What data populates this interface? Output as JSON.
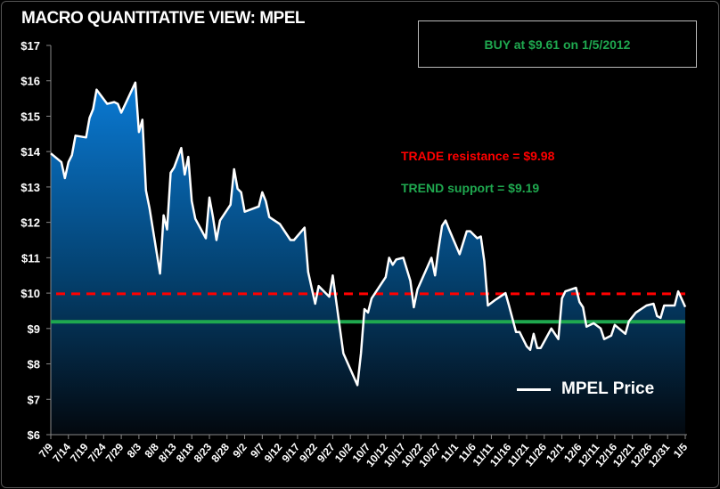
{
  "chart_data": {
    "type": "area",
    "title": "MACRO QUANTITATIVE VIEW: MPEL",
    "xlabel": "",
    "ylabel": "",
    "ylim": [
      6,
      17
    ],
    "y_ticks": [
      "$6",
      "$7",
      "$8",
      "$9",
      "$10",
      "$11",
      "$12",
      "$13",
      "$14",
      "$15",
      "$16",
      "$17"
    ],
    "x_ticks": [
      "7/9",
      "7/14",
      "7/19",
      "7/24",
      "7/29",
      "8/3",
      "8/8",
      "8/13",
      "8/18",
      "8/23",
      "8/28",
      "9/2",
      "9/7",
      "9/12",
      "9/17",
      "9/22",
      "9/27",
      "10/2",
      "10/7",
      "10/12",
      "10/17",
      "10/22",
      "10/27",
      "11/1",
      "11/6",
      "11/11",
      "11/16",
      "11/21",
      "11/26",
      "12/1",
      "12/6",
      "12/11",
      "12/16",
      "12/21",
      "12/26",
      "12/31",
      "1/5"
    ],
    "grid": false,
    "legend_placement": "bottom-right",
    "series": [
      {
        "name": "MPEL Price",
        "color": "#ffffff",
        "fill_top": "#0a7bd6",
        "fill_bottom": "#03080e",
        "x": [
          "2011-07-09",
          "2011-07-12",
          "2011-07-13",
          "2011-07-14",
          "2011-07-15",
          "2011-07-16",
          "2011-07-19",
          "2011-07-20",
          "2011-07-21",
          "2011-07-22",
          "2011-07-25",
          "2011-07-27",
          "2011-07-28",
          "2011-07-29",
          "2011-08-02",
          "2011-08-03",
          "2011-08-04",
          "2011-08-05",
          "2011-08-06",
          "2011-08-09",
          "2011-08-10",
          "2011-08-11",
          "2011-08-12",
          "2011-08-13",
          "2011-08-15",
          "2011-08-16",
          "2011-08-17",
          "2011-08-18",
          "2011-08-19",
          "2011-08-22",
          "2011-08-23",
          "2011-08-24",
          "2011-08-25",
          "2011-08-26",
          "2011-08-29",
          "2011-08-30",
          "2011-08-31",
          "2011-09-01",
          "2011-09-02",
          "2011-09-06",
          "2011-09-07",
          "2011-09-08",
          "2011-09-09",
          "2011-09-12",
          "2011-09-15",
          "2011-09-16",
          "2011-09-19",
          "2011-09-20",
          "2011-09-22",
          "2011-09-23",
          "2011-09-26",
          "2011-09-27",
          "2011-09-28",
          "2011-09-30",
          "2011-10-04",
          "2011-10-05",
          "2011-10-06",
          "2011-10-07",
          "2011-10-08",
          "2011-10-11",
          "2011-10-12",
          "2011-10-13",
          "2011-10-14",
          "2011-10-15",
          "2011-10-17",
          "2011-10-19",
          "2011-10-20",
          "2011-10-21",
          "2011-10-25",
          "2011-10-26",
          "2011-10-27",
          "2011-10-28",
          "2011-10-29",
          "2011-10-30",
          "2011-11-02",
          "2011-11-04",
          "2011-11-05",
          "2011-11-07",
          "2011-11-08",
          "2011-11-09",
          "2011-11-10",
          "2011-11-12",
          "2011-11-15",
          "2011-11-16",
          "2011-11-18",
          "2011-11-19",
          "2011-11-21",
          "2011-11-22",
          "2011-11-23",
          "2011-11-24",
          "2011-11-25",
          "2011-11-28",
          "2011-11-30",
          "2011-12-01",
          "2011-12-02",
          "2011-12-05",
          "2011-12-06",
          "2011-12-07",
          "2011-12-08",
          "2011-12-10",
          "2011-12-12",
          "2011-12-13",
          "2011-12-15",
          "2011-12-16",
          "2011-12-19",
          "2011-12-20",
          "2011-12-22",
          "2011-12-25",
          "2011-12-27",
          "2011-12-28",
          "2011-12-29",
          "2011-12-30",
          "2012-01-02",
          "2012-01-03",
          "2012-01-05"
        ],
        "values": [
          13.95,
          13.7,
          13.25,
          13.7,
          13.9,
          14.45,
          14.4,
          14.95,
          15.2,
          15.75,
          15.35,
          15.4,
          15.35,
          15.1,
          15.95,
          14.55,
          14.9,
          12.9,
          12.4,
          10.55,
          12.2,
          11.8,
          13.4,
          13.55,
          14.1,
          13.35,
          13.85,
          12.6,
          12.1,
          11.55,
          12.7,
          12.15,
          11.5,
          12.05,
          12.5,
          13.5,
          12.95,
          12.85,
          12.3,
          12.45,
          12.85,
          12.6,
          12.15,
          11.95,
          11.5,
          11.5,
          11.85,
          10.6,
          9.7,
          10.2,
          9.9,
          10.5,
          9.75,
          8.3,
          7.4,
          8.3,
          9.55,
          9.45,
          9.85,
          10.3,
          10.45,
          11.0,
          10.8,
          10.95,
          11.0,
          10.35,
          9.6,
          10.1,
          11.0,
          10.5,
          11.25,
          11.9,
          12.05,
          11.8,
          11.1,
          11.75,
          11.75,
          11.55,
          11.6,
          10.9,
          9.65,
          9.8,
          10.0,
          9.65,
          8.9,
          8.9,
          8.5,
          8.4,
          8.85,
          8.45,
          8.45,
          9.0,
          8.7,
          9.85,
          10.05,
          10.15,
          9.75,
          9.6,
          9.05,
          9.15,
          9.0,
          8.7,
          8.8,
          9.1,
          8.85,
          9.2,
          9.45,
          9.65,
          9.7,
          9.35,
          9.3,
          9.65,
          9.65,
          10.05,
          9.61
        ]
      }
    ],
    "reference_lines": [
      {
        "label": "TRADE resistance = $9.98",
        "value": 9.98,
        "color": "#ff0000",
        "style": "dashed"
      },
      {
        "label": "TREND support = $9.19",
        "value": 9.19,
        "color": "#1fa84f",
        "style": "solid"
      }
    ],
    "annotations": {
      "signal": "BUY at $9.61 on 1/5/2012",
      "signal_color": "#1fa84f"
    }
  }
}
